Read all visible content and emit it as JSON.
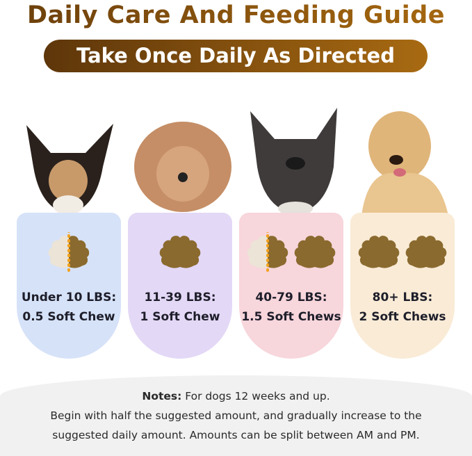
{
  "title": "Daily Care And Feeding Guide",
  "subtitle": "Take Once Daily As Directed",
  "cards": [
    {
      "weight": "Under 10 LBS:",
      "dose": "0.5 Soft Chew",
      "chews": 0.5,
      "color": "#d6e2f8"
    },
    {
      "weight": "11-39 LBS:",
      "dose": "1 Soft Chew",
      "chews": 1,
      "color": "#e3d8f6"
    },
    {
      "weight": "40-79 LBS:",
      "dose": "1.5 Soft Chews",
      "chews": 1.5,
      "color": "#f7d6dc"
    },
    {
      "weight": "80+ LBS:",
      "dose": "2 Soft Chews",
      "chews": 2,
      "color": "#f9ebd6"
    }
  ],
  "notes": {
    "label": "Notes:",
    "line1": "For dogs 12 weeks and up.",
    "line2": "Begin with half the suggested amount, and gradually increase to the",
    "line3": "suggested daily amount. Amounts can be split between AM and PM."
  }
}
